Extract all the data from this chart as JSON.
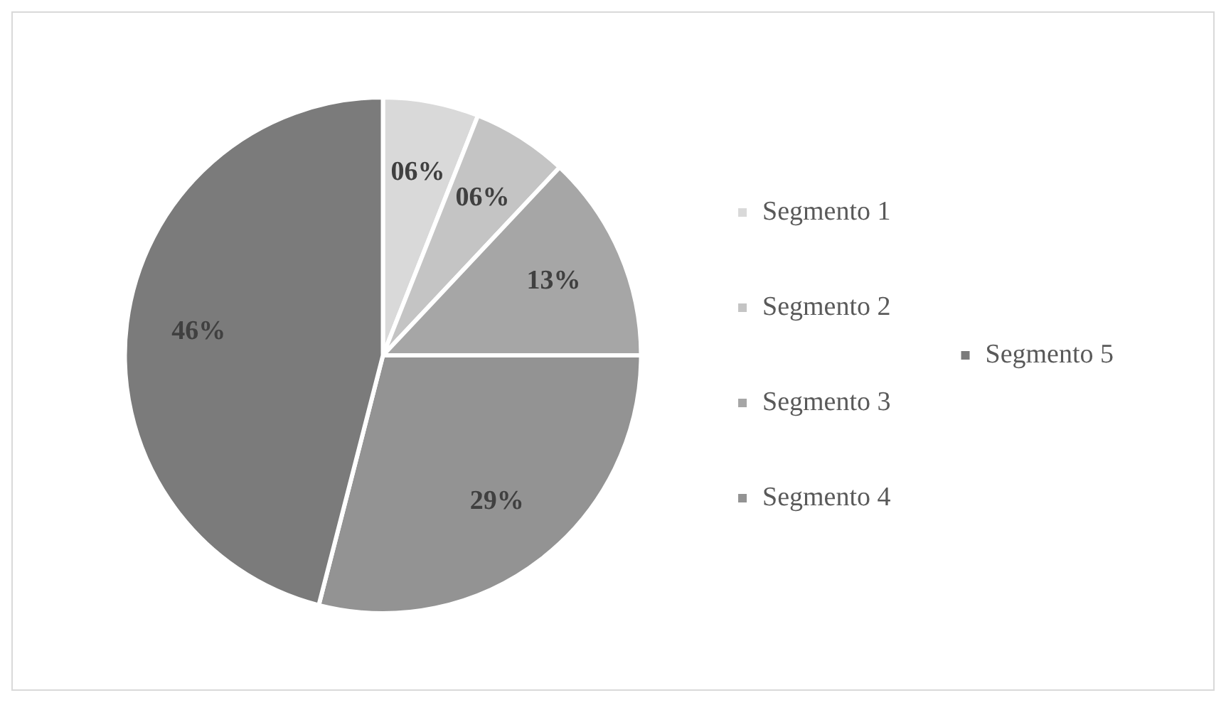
{
  "chart_data": {
    "type": "pie",
    "categories": [
      "Segmento 1",
      "Segmento 2",
      "Segmento 3",
      "Segmento 4",
      "Segmento 5"
    ],
    "values": [
      6,
      6,
      13,
      29,
      46
    ],
    "colors": [
      "#d9d9d9",
      "#c4c4c4",
      "#a6a6a6",
      "#939393",
      "#7b7b7b"
    ],
    "value_labels": [
      "06%",
      "06%",
      "13%",
      "29%",
      "46%"
    ],
    "legend": "right"
  }
}
